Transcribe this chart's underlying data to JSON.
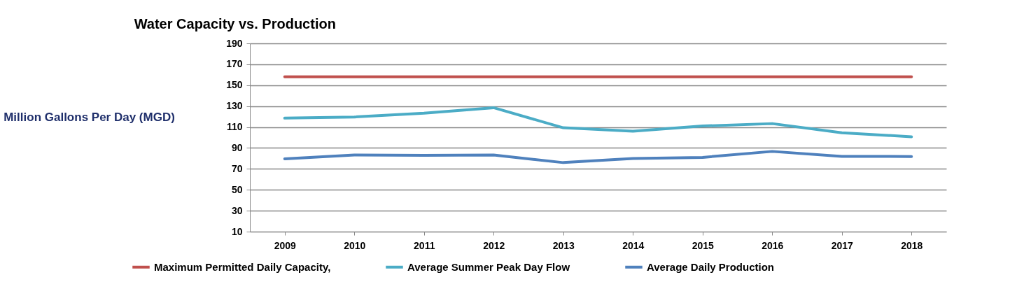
{
  "chart_data": {
    "type": "line",
    "title": "Water Capacity vs. Production",
    "ylabel": "Million Gallons Per Day\n(MGD)",
    "categories": [
      "2009",
      "2010",
      "2011",
      "2012",
      "2013",
      "2014",
      "2015",
      "2016",
      "2017",
      "2018"
    ],
    "series": [
      {
        "name": "Maximum Permitted Daily Capacity,",
        "color": "#c0504d",
        "values": [
          158,
          158,
          158,
          158,
          158,
          158,
          158,
          158,
          158,
          158
        ]
      },
      {
        "name": "Average Summer Peak Day Flow",
        "color": "#4bacc6",
        "values": [
          118.5,
          119.6,
          123.3,
          128.5,
          109.3,
          106,
          111,
          113.3,
          104.5,
          100.7
        ]
      },
      {
        "name": "Average Daily Production",
        "color": "#4f81bd",
        "values": [
          79.6,
          83.3,
          83,
          83.3,
          76,
          80,
          81,
          86.7,
          82,
          81.8
        ]
      }
    ],
    "ylim": [
      10,
      190
    ],
    "yticks": [
      10,
      30,
      50,
      70,
      90,
      110,
      130,
      150,
      170,
      190
    ],
    "grid": "y",
    "legend": "bottom",
    "marker": "none",
    "line_style": "solid"
  }
}
